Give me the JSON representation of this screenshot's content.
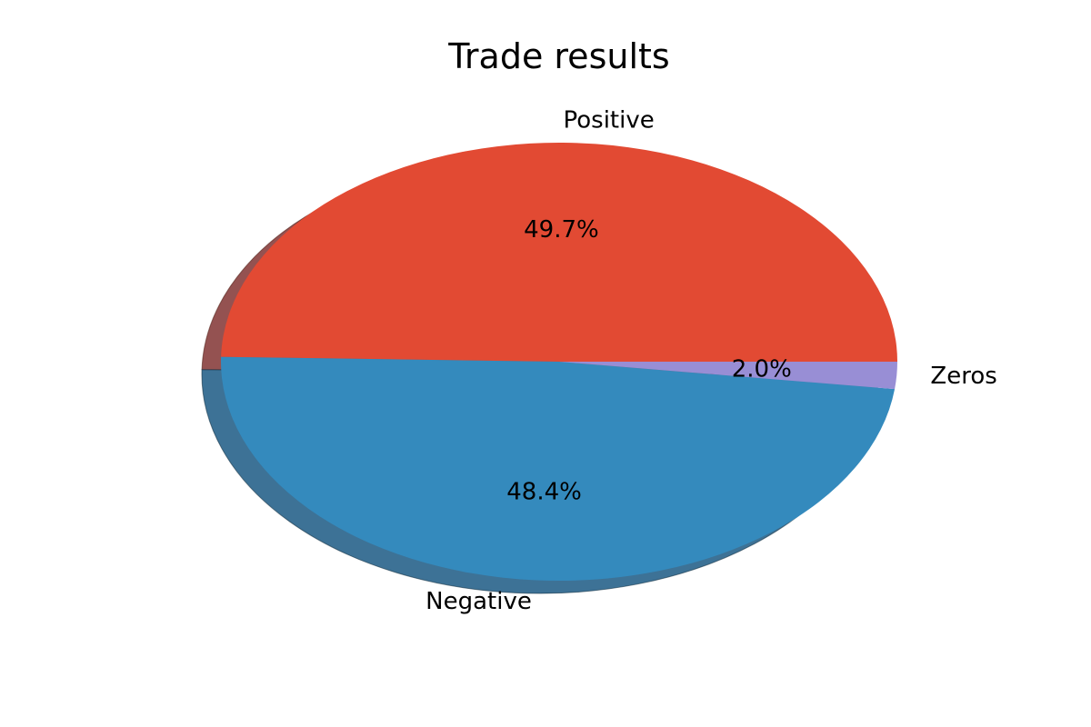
{
  "chart_data": {
    "type": "pie",
    "title": "Trade results",
    "shadow": true,
    "start_angle_deg": 0,
    "direction": "counterclockwise",
    "slices": [
      {
        "label": "Positive",
        "value": 49.7,
        "pct_label": "49.7%",
        "color": "#e24a33"
      },
      {
        "label": "Negative",
        "value": 48.4,
        "pct_label": "48.4%",
        "color": "#348abd"
      },
      {
        "label": "Zeros",
        "value": 2.0,
        "pct_label": "2.0%",
        "color": "#988ed5"
      }
    ]
  }
}
